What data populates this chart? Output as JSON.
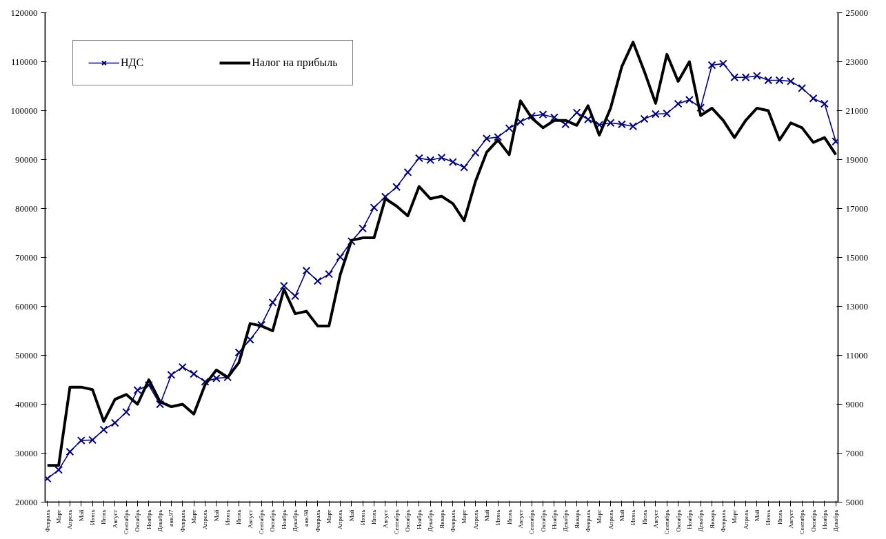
{
  "chart_data": {
    "type": "line",
    "categories": [
      "Февраль",
      "Март",
      "Апрель",
      "Май",
      "Июнь",
      "Июль",
      "Август",
      "Сентябрь",
      "Октябрь",
      "Ноябрь",
      "Декабрь",
      "янв.97",
      "Февраль",
      "Март",
      "Апрель",
      "Май",
      "Июнь",
      "Июль",
      "Август",
      "Сентябрь",
      "Октябрь",
      "Ноябрь",
      "Декабрь",
      "янв.98",
      "Февраль",
      "Март",
      "Апрель",
      "Май",
      "Июнь",
      "Июль",
      "Август",
      "Сентябрь",
      "Октябрь",
      "Ноябрь",
      "Декабрь",
      "Январь",
      "Февраль",
      "Март",
      "Апрель",
      "Май",
      "Июнь",
      "Июль",
      "Август",
      "Сентябрь",
      "Октябрь",
      "Ноябрь",
      "Декабрь",
      "Январь",
      "Февраль",
      "Март",
      "Апрель",
      "Май",
      "Июнь",
      "Июль",
      "Август",
      "Сентябрь",
      "Октябрь",
      "Ноябрь",
      "Декабрь",
      "Январь",
      "Февраль",
      "Март",
      "Апрель",
      "Май",
      "Июнь",
      "Июль",
      "Август",
      "Сентябрь",
      "Октябрь",
      "Ноябрь",
      "Декабрь"
    ],
    "series": [
      {
        "name": "НДС",
        "color": "#000080",
        "marker": "cross",
        "values": [
          24800,
          26600,
          30300,
          32600,
          32700,
          34800,
          36200,
          38400,
          42900,
          43900,
          40000,
          46000,
          47600,
          46200,
          44600,
          45300,
          45500,
          50600,
          53200,
          56200,
          60800,
          64200,
          62100,
          67300,
          65200,
          66600,
          70100,
          73300,
          75900,
          80200,
          82400,
          84400,
          87400,
          90300,
          89900,
          90400,
          89500,
          88400,
          91400,
          94300,
          94600,
          96400,
          97700,
          98900,
          99200,
          98600,
          97200,
          99600,
          98200,
          97100,
          97500,
          97200,
          96800,
          98300,
          99300,
          99400,
          101400,
          102200,
          100600,
          109300,
          109600,
          106800,
          106800,
          107100,
          106200,
          106200,
          106000,
          104600,
          102500,
          101400,
          93700
        ]
      },
      {
        "name": "Налог на прибыль",
        "color": "#000000",
        "marker": "none",
        "axis": "y2",
        "values": [
          6500,
          6500,
          9700,
          9700,
          9600,
          8300,
          9200,
          9400,
          9000,
          10000,
          9100,
          8900,
          9000,
          8600,
          9800,
          10400,
          10100,
          10700,
          12300,
          12200,
          12000,
          13700,
          12700,
          12800,
          12200,
          12200,
          14300,
          15700,
          15800,
          15800,
          17400,
          17100,
          16700,
          17900,
          17400,
          17500,
          17200,
          16500,
          18100,
          19300,
          19800,
          19200,
          21400,
          20700,
          20300,
          20600,
          20600,
          20400,
          21200,
          20000,
          21100,
          22800,
          23800,
          22600,
          21300,
          23300,
          22200,
          23000,
          20800,
          21100,
          20600,
          19900,
          20600,
          21100,
          21000,
          19800,
          20500,
          20300,
          19700,
          19900,
          19200
        ]
      }
    ],
    "ylim": [
      20000,
      120000
    ],
    "yticks": [
      20000,
      30000,
      40000,
      50000,
      60000,
      70000,
      80000,
      90000,
      100000,
      110000,
      120000
    ],
    "y2lim": [
      5000,
      25000
    ],
    "y2ticks": [
      5000,
      7000,
      9000,
      11000,
      13000,
      15000,
      17000,
      19000,
      21000,
      23000,
      25000
    ],
    "legend": "top left",
    "grid": false
  }
}
